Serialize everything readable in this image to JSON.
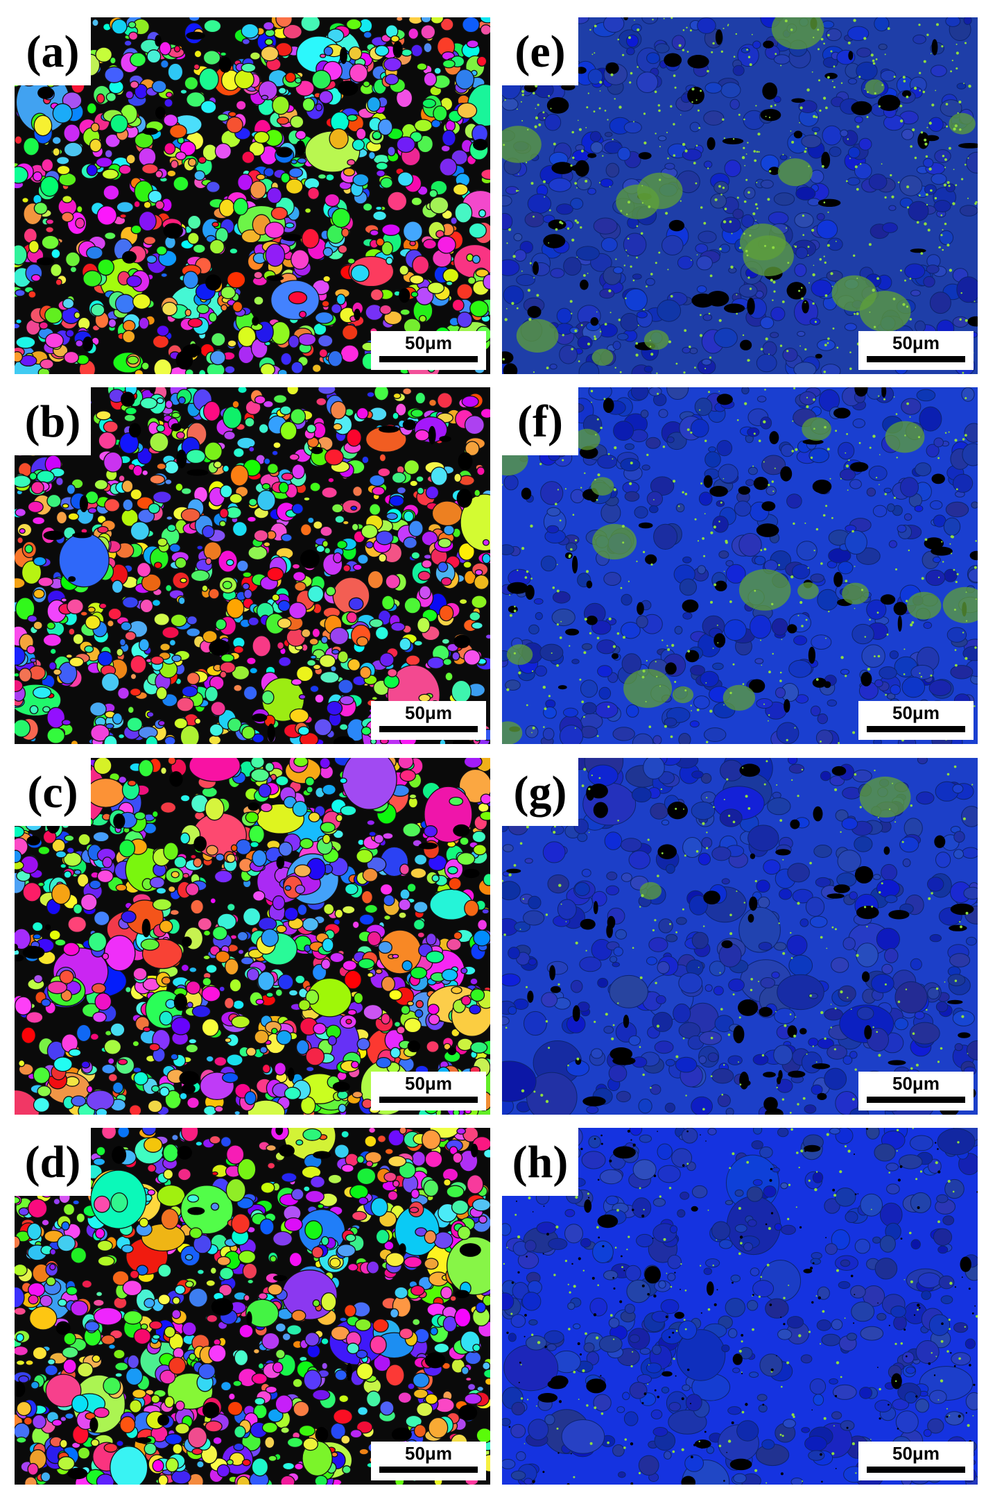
{
  "panels": [
    {
      "label": "(a)",
      "scale_bar": "50μm"
    },
    {
      "label": "(b)",
      "scale_bar": "50μm"
    },
    {
      "label": "(c)",
      "scale_bar": "50μm"
    },
    {
      "label": "(d)",
      "scale_bar": "50μm"
    },
    {
      "label": "(e)",
      "scale_bar": "50μm"
    },
    {
      "label": "(f)",
      "scale_bar": "50μm"
    },
    {
      "label": "(g)",
      "scale_bar": "50μm"
    },
    {
      "label": "(h)",
      "scale_bar": "50μm"
    }
  ]
}
